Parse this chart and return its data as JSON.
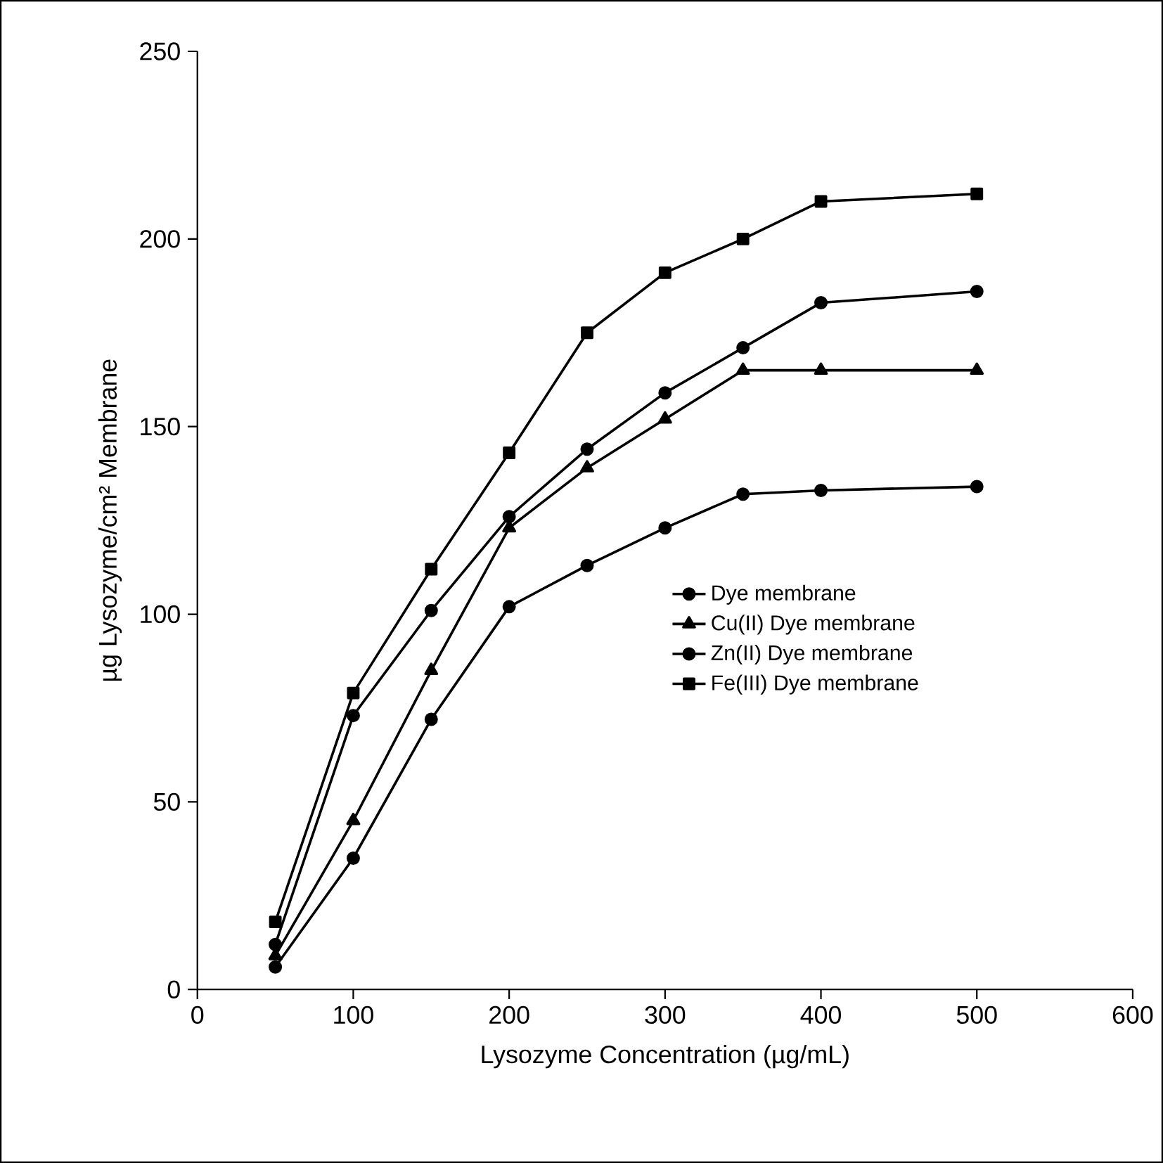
{
  "chart_data": {
    "type": "line",
    "xlabel": "Lysozyme Concentration (µg/mL)",
    "ylabel": "µg Lysozyme/cm² Membrane",
    "x": [
      50,
      100,
      150,
      200,
      250,
      300,
      350,
      400,
      500
    ],
    "series": [
      {
        "name": "Dye membrane",
        "color": "#000000",
        "marker": "circle",
        "values": [
          6,
          35,
          72,
          102,
          113,
          123,
          132,
          133,
          134
        ]
      },
      {
        "name": "Cu(II) Dye membrane",
        "color": "#000000",
        "marker": "triangle",
        "values": [
          9,
          45,
          85,
          123,
          139,
          152,
          165,
          165,
          165
        ]
      },
      {
        "name": "Zn(II) Dye membrane",
        "color": "#000000",
        "marker": "circle",
        "values": [
          12,
          73,
          101,
          126,
          144,
          159,
          171,
          183,
          186
        ]
      },
      {
        "name": "Fe(III) Dye membrane",
        "color": "#000000",
        "marker": "square",
        "values": [
          18,
          79,
          112,
          143,
          175,
          191,
          200,
          210,
          212
        ]
      }
    ],
    "xlim": [
      0,
      600
    ],
    "xticks": [
      0,
      100,
      200,
      300,
      400,
      500,
      600
    ],
    "ylim": [
      0,
      250
    ],
    "yticks": [
      0,
      50,
      100,
      150,
      200,
      250
    ],
    "grid": false,
    "legend": "right",
    "line_style": "solid"
  }
}
